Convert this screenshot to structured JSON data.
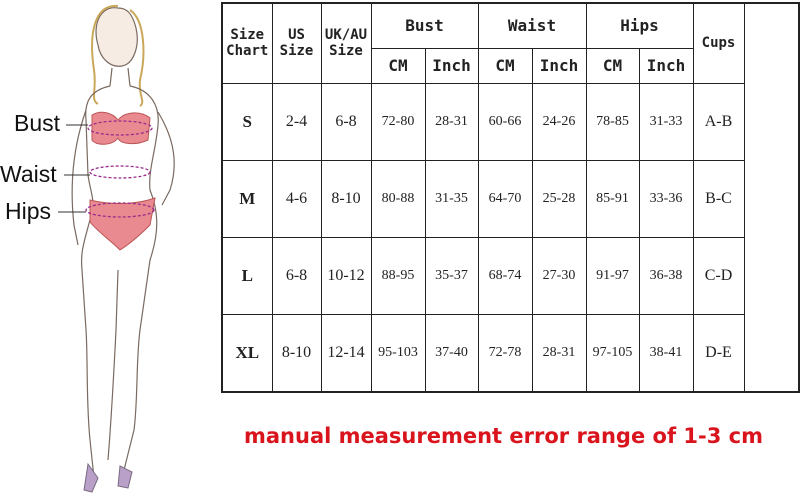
{
  "labels": {
    "bust": "Bust",
    "waist": "Waist",
    "hips": "Hips"
  },
  "table": {
    "headers": {
      "size_chart": "Size Chart",
      "us_size": "US Size",
      "uk_au_size": "UK/AU Size",
      "bust": "Bust",
      "waist": "Waist",
      "hips": "Hips",
      "cups": "Cups",
      "cm": "CM",
      "inch": "Inch"
    },
    "rows": [
      {
        "size": "S",
        "us": "2-4",
        "uk": "6-8",
        "bust_cm": "72-80",
        "bust_in": "28-31",
        "waist_cm": "60-66",
        "waist_in": "24-26",
        "hips_cm": "78-85",
        "hips_in": "31-33",
        "cups": "A-B"
      },
      {
        "size": "M",
        "us": "4-6",
        "uk": "8-10",
        "bust_cm": "80-88",
        "bust_in": "31-35",
        "waist_cm": "64-70",
        "waist_in": "25-28",
        "hips_cm": "85-91",
        "hips_in": "33-36",
        "cups": "B-C"
      },
      {
        "size": "L",
        "us": "6-8",
        "uk": "10-12",
        "bust_cm": "88-95",
        "bust_in": "35-37",
        "waist_cm": "68-74",
        "waist_in": "27-30",
        "hips_cm": "91-97",
        "hips_in": "36-38",
        "cups": "C-D"
      },
      {
        "size": "XL",
        "us": "8-10",
        "uk": "12-14",
        "bust_cm": "95-103",
        "bust_in": "37-40",
        "waist_cm": "72-78",
        "waist_in": "28-31",
        "hips_cm": "97-105",
        "hips_in": "38-41",
        "cups": "D-E"
      }
    ]
  },
  "note": "manual measurement error range of 1-3 cm",
  "colors": {
    "note": "#d9141c",
    "measure_line": "#9b2c8c",
    "garment": "#e88a90"
  }
}
